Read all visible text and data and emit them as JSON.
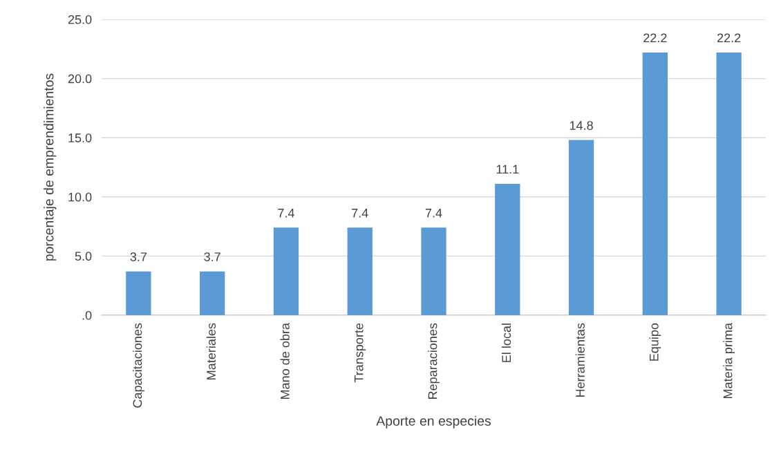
{
  "chart_data": {
    "type": "bar",
    "xlabel": "Aporte en especies",
    "ylabel": "porcentaje de emprendimientos",
    "categories": [
      "Capacitaciones",
      "Materiales",
      "Mano de obra",
      "Transporte",
      "Reparaciones",
      "El local",
      "Herramientas",
      "Equipo",
      "Materia prima"
    ],
    "values": [
      3.7,
      3.7,
      7.4,
      7.4,
      7.4,
      11.1,
      14.8,
      22.2,
      22.2
    ],
    "color": "#5b9bd5",
    "data_labels": true,
    "grid": "y",
    "legend": false,
    "ylim": [
      0,
      25
    ],
    "yticks": [
      {
        "value": 0,
        "label": ".0"
      },
      {
        "value": 5,
        "label": "5.0"
      },
      {
        "value": 10,
        "label": "10.0"
      },
      {
        "value": 15,
        "label": "15.0"
      },
      {
        "value": 20,
        "label": "20.0"
      },
      {
        "value": 25,
        "label": "25.0"
      }
    ]
  }
}
